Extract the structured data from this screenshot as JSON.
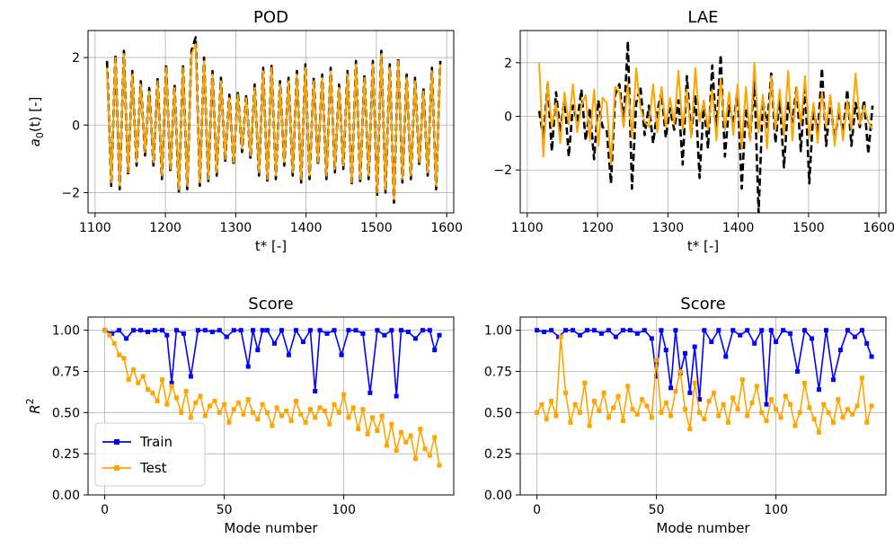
{
  "chart_data": [
    {
      "type": "line",
      "title": "POD",
      "xlabel": "t* [-]",
      "ylabel_main": "a",
      "ylabel_sub": "0",
      "ylabel_rest": "(t) [-]",
      "xlim": [
        1090,
        1610
      ],
      "ylim": [
        -2.6,
        2.8
      ],
      "xticks": [
        1100,
        1200,
        1300,
        1400,
        1500,
        1600
      ],
      "yticks": [
        -2,
        0,
        2
      ],
      "grid": true,
      "colors": {
        "truth": "#000000",
        "prediction": "#ffa500"
      },
      "t": [
        1117,
        1123,
        1129,
        1135,
        1141,
        1147,
        1153,
        1159,
        1165,
        1171,
        1177,
        1183,
        1189,
        1195,
        1201,
        1207,
        1213,
        1219,
        1225,
        1231,
        1237,
        1243,
        1249,
        1255,
        1261,
        1267,
        1273,
        1279,
        1285,
        1291,
        1297,
        1303,
        1309,
        1315,
        1321,
        1327,
        1333,
        1339,
        1345,
        1351,
        1357,
        1363,
        1369,
        1375,
        1381,
        1387,
        1393,
        1399,
        1405,
        1411,
        1417,
        1423,
        1429,
        1435,
        1441,
        1447,
        1453,
        1459,
        1465,
        1471,
        1477,
        1483,
        1489,
        1495,
        1501,
        1507,
        1513,
        1519,
        1525,
        1531,
        1537,
        1543,
        1549,
        1555,
        1561,
        1567,
        1573,
        1579,
        1585,
        1591
      ],
      "truth": [
        1.9,
        -1.8,
        2.1,
        -1.9,
        2.2,
        -1.5,
        1.6,
        -1.2,
        1.3,
        -0.9,
        1.1,
        -1.2,
        1.4,
        -1.6,
        1.8,
        -1.4,
        1.2,
        -2.0,
        1.8,
        -1.9,
        2.2,
        2.6,
        -1.8,
        2.0,
        -1.7,
        1.6,
        -1.5,
        1.4,
        -1.1,
        0.9,
        -1.2,
        1.0,
        -0.8,
        0.9,
        -1.0,
        1.2,
        -1.5,
        1.7,
        -1.7,
        1.8,
        -1.6,
        1.3,
        -1.2,
        1.4,
        -1.5,
        1.6,
        -1.7,
        1.8,
        -1.6,
        1.4,
        -1.2,
        1.5,
        -1.6,
        1.7,
        -1.4,
        1.2,
        -1.3,
        1.6,
        -1.8,
        1.9,
        -1.7,
        1.5,
        -1.6,
        1.9,
        -2.1,
        2.2,
        -2.0,
        1.8,
        -2.3,
        2.0,
        -1.7,
        1.5,
        -1.6,
        1.4,
        -1.2,
        1.1,
        -1.5,
        1.7,
        -1.9,
        1.9
      ],
      "prediction": [
        1.7,
        -1.7,
        2.0,
        -1.8,
        2.1,
        -1.4,
        1.5,
        -1.1,
        1.2,
        -0.8,
        1.0,
        -1.1,
        1.3,
        -1.5,
        1.7,
        -1.3,
        1.1,
        -1.9,
        1.7,
        -1.8,
        2.1,
        2.4,
        -1.7,
        1.9,
        -1.6,
        1.5,
        -1.4,
        1.3,
        -1.0,
        0.8,
        -1.1,
        0.9,
        -0.7,
        0.8,
        -0.9,
        1.1,
        -1.4,
        1.6,
        -1.6,
        1.7,
        -1.5,
        1.2,
        -1.1,
        1.3,
        -1.4,
        1.5,
        -1.6,
        1.7,
        -1.5,
        1.3,
        -1.1,
        1.4,
        -1.5,
        1.6,
        -1.3,
        1.1,
        -1.2,
        1.5,
        -1.7,
        1.8,
        -1.6,
        1.4,
        -1.5,
        1.8,
        -2.0,
        2.1,
        -1.9,
        1.7,
        -2.2,
        1.9,
        -1.6,
        1.4,
        -1.5,
        1.3,
        -1.1,
        1.0,
        -1.4,
        1.6,
        -1.8,
        1.8
      ]
    },
    {
      "type": "line",
      "title": "LAE",
      "xlabel": "t* [-]",
      "xlim": [
        1090,
        1610
      ],
      "ylim": [
        -3.6,
        3.2
      ],
      "xticks": [
        1100,
        1200,
        1300,
        1400,
        1500,
        1600
      ],
      "yticks": [
        -2,
        0,
        2
      ],
      "grid": true,
      "colors": {
        "truth": "#000000",
        "prediction": "#ffa500"
      },
      "t": [
        1117,
        1123,
        1129,
        1135,
        1141,
        1147,
        1153,
        1159,
        1165,
        1171,
        1177,
        1183,
        1189,
        1195,
        1201,
        1207,
        1213,
        1219,
        1225,
        1231,
        1237,
        1243,
        1249,
        1255,
        1261,
        1267,
        1273,
        1279,
        1285,
        1291,
        1297,
        1303,
        1309,
        1315,
        1321,
        1327,
        1333,
        1339,
        1345,
        1351,
        1357,
        1363,
        1369,
        1375,
        1381,
        1387,
        1393,
        1399,
        1405,
        1411,
        1417,
        1423,
        1429,
        1435,
        1441,
        1447,
        1453,
        1459,
        1465,
        1471,
        1477,
        1483,
        1489,
        1495,
        1501,
        1507,
        1513,
        1519,
        1525,
        1531,
        1537,
        1543,
        1549,
        1555,
        1561,
        1567,
        1573,
        1579,
        1585,
        1591
      ],
      "truth": [
        0.2,
        -0.8,
        1.2,
        -1.3,
        0.9,
        -0.6,
        0.7,
        -1.5,
        0.4,
        -0.2,
        1.0,
        -0.9,
        0.3,
        -1.6,
        0.6,
        -0.4,
        -0.5,
        -2.5,
        0.8,
        1.2,
        -0.3,
        2.8,
        -2.7,
        0.5,
        1.1,
        -0.7,
        0.4,
        -1.0,
        0.2,
        0.9,
        -0.8,
        0.3,
        -0.5,
        0.6,
        -1.8,
        1.5,
        -0.7,
        0.8,
        -2.3,
        0.5,
        -1.2,
        1.9,
        -0.6,
        2.3,
        -1.5,
        0.4,
        -0.3,
        1.0,
        -2.7,
        0.3,
        -0.8,
        1.4,
        -3.6,
        0.6,
        -0.4,
        1.6,
        -1.0,
        0.7,
        -1.9,
        0.5,
        -0.2,
        1.1,
        -1.3,
        1.2,
        -2.5,
        0.3,
        -0.7,
        1.8,
        -1.1,
        0.6,
        -0.9,
        0.2,
        -0.6,
        1.0,
        -1.1,
        0.5,
        -0.4,
        0.6,
        -1.4,
        0.4
      ],
      "prediction": [
        2.0,
        -1.5,
        1.3,
        -0.4,
        0.5,
        -1.0,
        0.9,
        -0.3,
        1.2,
        -0.6,
        0.4,
        0.8,
        -0.9,
        1.0,
        -1.1,
        0.7,
        0.5,
        -1.8,
        1.1,
        0.9,
        -0.4,
        1.2,
        -0.8,
        1.8,
        0.3,
        -0.2,
        -0.4,
        1.2,
        -0.6,
        1.1,
        -0.4,
        0.7,
        -0.3,
        1.7,
        -0.5,
        1.0,
        -0.8,
        1.8,
        -0.2,
        0.6,
        -0.5,
        1.0,
        -0.9,
        1.4,
        -0.5,
        0.9,
        -0.7,
        1.2,
        -1.2,
        1.1,
        -0.9,
        2.0,
        -0.6,
        0.8,
        -1.2,
        1.5,
        -0.5,
        1.0,
        -0.7,
        1.7,
        -0.9,
        1.1,
        -0.3,
        1.5,
        -0.8,
        0.5,
        -1.0,
        0.9,
        -0.4,
        0.8,
        -1.1,
        0.5,
        -0.9,
        0.6,
        -0.5,
        1.6,
        -0.3,
        0.4,
        -0.2,
        -0.5
      ]
    },
    {
      "type": "line",
      "title": "Score",
      "xlabel": "Mode number",
      "ylabel_main": "R",
      "ylabel_sup": "2",
      "xlim": [
        -7,
        146
      ],
      "ylim": [
        0,
        1.08
      ],
      "xticks": [
        0,
        50,
        100
      ],
      "yticks": [
        0.0,
        0.25,
        0.5,
        0.75,
        1.0
      ],
      "ytick_labels": [
        "0.00",
        "0.25",
        "0.50",
        "0.75",
        "1.00"
      ],
      "grid": true,
      "legend": {
        "placement": "lower-left"
      },
      "series": [
        {
          "name": "Train",
          "color": "#0000ff",
          "x": [
            0,
            3,
            6,
            9,
            12,
            15,
            18,
            21,
            24,
            26,
            28,
            30,
            33,
            36,
            39,
            42,
            45,
            48,
            51,
            54,
            57,
            60,
            62,
            64,
            66,
            68,
            71,
            74,
            77,
            80,
            83,
            86,
            88,
            90,
            93,
            96,
            99,
            102,
            105,
            108,
            111,
            114,
            117,
            120,
            122,
            124,
            127,
            130,
            133,
            136,
            138,
            140
          ],
          "values": [
            1.0,
            0.98,
            1.0,
            0.95,
            1.0,
            1.0,
            0.99,
            1.0,
            1.0,
            0.97,
            0.68,
            1.0,
            0.98,
            0.72,
            1.0,
            1.0,
            0.99,
            1.0,
            0.96,
            1.0,
            1.0,
            0.78,
            1.0,
            0.88,
            1.0,
            1.0,
            0.92,
            1.0,
            0.85,
            1.0,
            0.93,
            1.0,
            0.63,
            1.0,
            0.98,
            1.0,
            0.85,
            1.0,
            1.0,
            0.98,
            0.62,
            1.0,
            0.97,
            1.0,
            0.6,
            1.0,
            0.99,
            0.95,
            1.0,
            1.0,
            0.88,
            0.97
          ]
        },
        {
          "name": "Test",
          "color": "#ffa500",
          "x": [
            0,
            2,
            4,
            6,
            8,
            10,
            12,
            14,
            16,
            18,
            20,
            22,
            24,
            26,
            28,
            30,
            32,
            34,
            36,
            38,
            40,
            42,
            44,
            46,
            48,
            50,
            52,
            54,
            56,
            58,
            60,
            62,
            64,
            66,
            68,
            70,
            72,
            74,
            76,
            78,
            80,
            82,
            84,
            86,
            88,
            90,
            92,
            94,
            96,
            98,
            100,
            102,
            104,
            106,
            108,
            110,
            112,
            114,
            116,
            118,
            120,
            122,
            124,
            126,
            128,
            130,
            132,
            134,
            136,
            138,
            140
          ],
          "values": [
            1.0,
            0.97,
            0.92,
            0.85,
            0.83,
            0.7,
            0.76,
            0.68,
            0.72,
            0.64,
            0.62,
            0.57,
            0.7,
            0.55,
            0.66,
            0.59,
            0.5,
            0.63,
            0.47,
            0.56,
            0.6,
            0.48,
            0.54,
            0.57,
            0.5,
            0.55,
            0.44,
            0.52,
            0.56,
            0.49,
            0.58,
            0.5,
            0.46,
            0.55,
            0.5,
            0.42,
            0.53,
            0.48,
            0.51,
            0.45,
            0.57,
            0.49,
            0.44,
            0.52,
            0.47,
            0.53,
            0.51,
            0.43,
            0.55,
            0.5,
            0.61,
            0.47,
            0.53,
            0.4,
            0.52,
            0.37,
            0.47,
            0.39,
            0.48,
            0.3,
            0.43,
            0.27,
            0.38,
            0.32,
            0.36,
            0.22,
            0.4,
            0.28,
            0.24,
            0.35,
            0.18
          ]
        }
      ]
    },
    {
      "type": "line",
      "title": "Score",
      "xlabel": "Mode number",
      "xlim": [
        -7,
        146
      ],
      "ylim": [
        0,
        1.08
      ],
      "xticks": [
        0,
        50,
        100
      ],
      "yticks": [
        0.0,
        0.25,
        0.5,
        0.75,
        1.0
      ],
      "ytick_labels": [
        "0.00",
        "0.25",
        "0.50",
        "0.75",
        "1.00"
      ],
      "grid": true,
      "series": [
        {
          "name": "Train",
          "color": "#0000ff",
          "x": [
            0,
            3,
            6,
            9,
            12,
            15,
            18,
            21,
            24,
            27,
            30,
            33,
            36,
            39,
            42,
            45,
            48,
            50,
            52,
            54,
            56,
            58,
            60,
            62,
            64,
            66,
            68,
            70,
            73,
            76,
            79,
            82,
            85,
            88,
            91,
            94,
            96,
            98,
            100,
            103,
            106,
            109,
            112,
            115,
            118,
            121,
            124,
            127,
            130,
            133,
            136,
            138,
            140
          ],
          "values": [
            1.0,
            0.99,
            1.0,
            0.96,
            1.0,
            1.0,
            0.97,
            1.0,
            1.0,
            0.98,
            1.0,
            0.96,
            1.0,
            1.0,
            0.98,
            1.0,
            0.95,
            0.72,
            1.0,
            0.88,
            0.65,
            1.0,
            0.74,
            0.86,
            0.62,
            0.9,
            0.58,
            1.0,
            0.93,
            1.0,
            0.84,
            1.0,
            0.97,
            1.0,
            0.92,
            1.0,
            0.55,
            1.0,
            0.93,
            1.0,
            0.98,
            0.75,
            1.0,
            0.95,
            0.64,
            1.0,
            0.7,
            0.88,
            1.0,
            0.96,
            1.0,
            0.92,
            0.84
          ]
        },
        {
          "name": "Test",
          "color": "#ffa500",
          "x": [
            0,
            2,
            4,
            6,
            8,
            10,
            12,
            14,
            16,
            18,
            20,
            22,
            24,
            26,
            28,
            30,
            32,
            34,
            36,
            38,
            40,
            42,
            44,
            46,
            48,
            50,
            52,
            54,
            56,
            58,
            60,
            62,
            64,
            66,
            68,
            70,
            72,
            74,
            76,
            78,
            80,
            82,
            84,
            86,
            88,
            90,
            92,
            94,
            96,
            98,
            100,
            102,
            104,
            106,
            108,
            110,
            112,
            114,
            116,
            118,
            120,
            122,
            124,
            126,
            128,
            130,
            132,
            134,
            136,
            138,
            140
          ],
          "values": [
            0.5,
            0.55,
            0.46,
            0.57,
            0.48,
            0.96,
            0.62,
            0.44,
            0.55,
            0.5,
            0.68,
            0.42,
            0.57,
            0.51,
            0.62,
            0.47,
            0.53,
            0.6,
            0.45,
            0.66,
            0.52,
            0.49,
            0.58,
            0.54,
            0.47,
            0.82,
            0.5,
            0.56,
            0.48,
            0.63,
            0.75,
            0.52,
            0.4,
            0.68,
            0.5,
            0.46,
            0.57,
            0.62,
            0.48,
            0.55,
            0.44,
            0.59,
            0.52,
            0.7,
            0.48,
            0.56,
            0.66,
            0.5,
            0.45,
            0.58,
            0.52,
            0.47,
            0.6,
            0.55,
            0.42,
            0.5,
            0.68,
            0.53,
            0.46,
            0.38,
            0.55,
            0.5,
            0.44,
            0.58,
            0.47,
            0.52,
            0.49,
            0.54,
            0.71,
            0.44,
            0.54
          ]
        }
      ]
    }
  ]
}
